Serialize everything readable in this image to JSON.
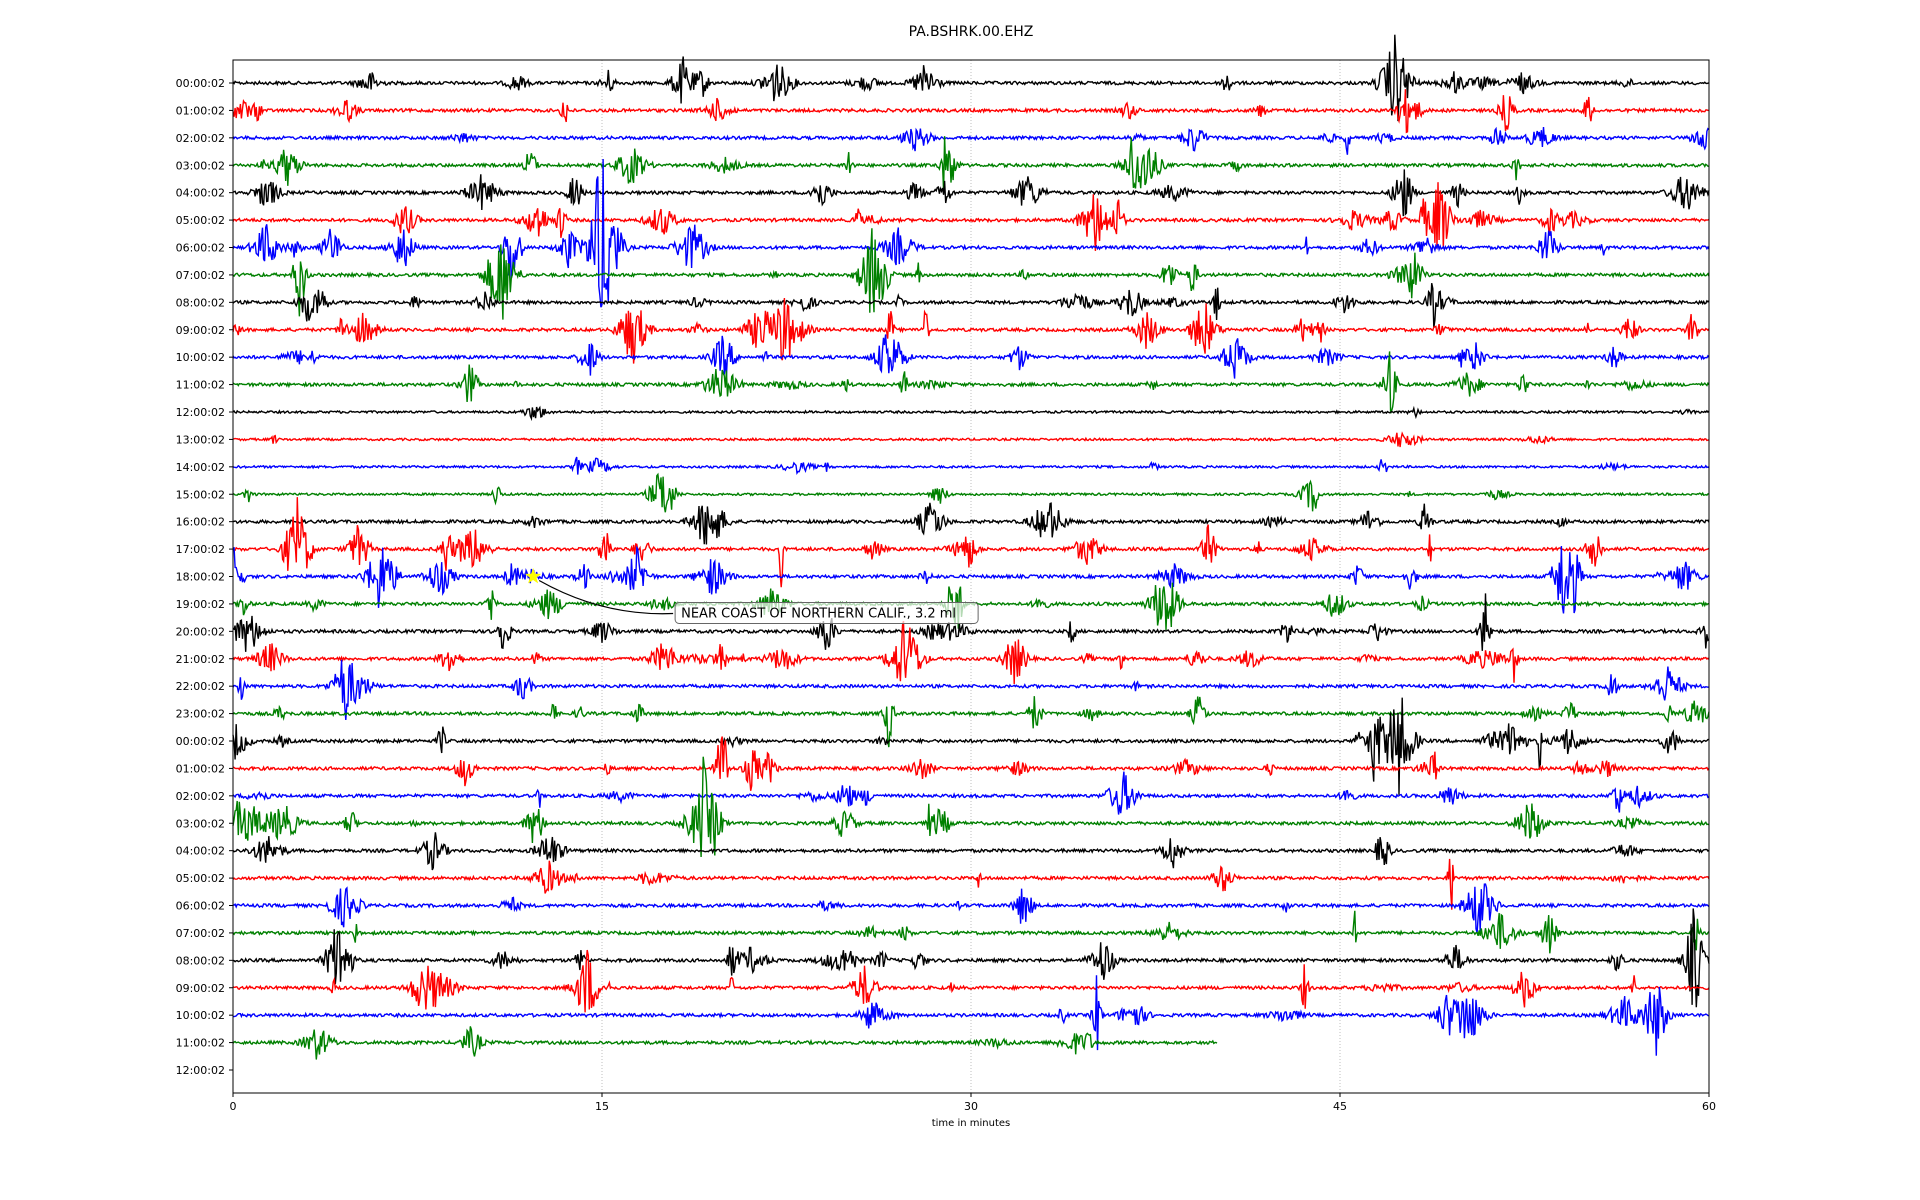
{
  "chart_data": {
    "type": "line",
    "title": "PA.BSHRK.00.EHZ",
    "xlabel": "time in minutes",
    "ylabel": "",
    "xlim": [
      0,
      60
    ],
    "x_ticks": [
      "0",
      "15",
      "30",
      "45",
      "60"
    ],
    "x_tick_values": [
      0,
      15,
      30,
      45,
      60
    ],
    "grid_x": [
      15,
      30,
      45
    ],
    "row_labels": [
      "00:00:02",
      "01:00:02",
      "02:00:02",
      "03:00:02",
      "04:00:02",
      "05:00:02",
      "06:00:02",
      "07:00:02",
      "08:00:02",
      "09:00:02",
      "10:00:02",
      "11:00:02",
      "12:00:02",
      "13:00:02",
      "14:00:02",
      "15:00:02",
      "16:00:02",
      "17:00:02",
      "18:00:02",
      "19:00:02",
      "20:00:02",
      "21:00:02",
      "22:00:02",
      "23:00:02",
      "00:00:02",
      "01:00:02",
      "02:00:02",
      "03:00:02",
      "04:00:02",
      "05:00:02",
      "06:00:02",
      "07:00:02",
      "08:00:02",
      "09:00:02",
      "10:00:02",
      "11:00:02",
      "12:00:02"
    ],
    "trace_colors": [
      "#000000",
      "#ff0000",
      "#0000ff",
      "#008000"
    ],
    "rows_with_data": 36,
    "last_trace_end_minute": 40,
    "annotation": {
      "text": "NEAR COAST OF NORTHERN CALIF., 3.2 ml",
      "row": 18,
      "minute": 12.2,
      "marker": "star",
      "marker_color": "#ffff00"
    }
  }
}
